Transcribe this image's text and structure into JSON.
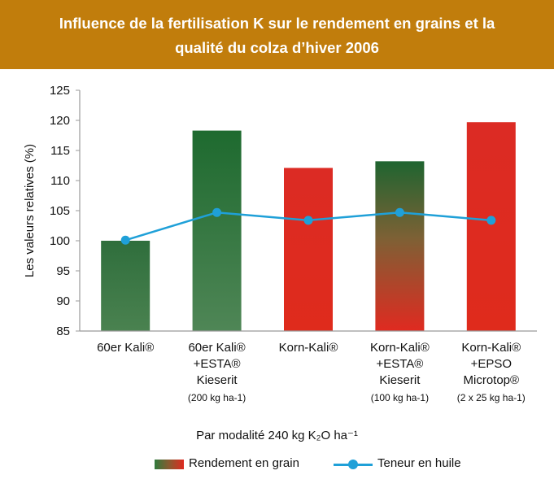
{
  "header": {
    "title_line1": "Influence de la fertilisation K sur le rendement en grains et la",
    "title_line2": "qualité du colza d’hiver 2006"
  },
  "chart_data": {
    "type": "bar",
    "ylabel": "Les valeurs relatives (%)",
    "xlabel": "Par modalité 240 kg K₂O ha⁻¹",
    "ylim": [
      85,
      125
    ],
    "yticks": [
      85,
      90,
      95,
      100,
      105,
      110,
      115,
      120,
      125
    ],
    "grid": false,
    "legend_position": "bottom",
    "categories": [
      {
        "lines": [
          "60er Kali®"
        ],
        "note": ""
      },
      {
        "lines": [
          "60er Kali®",
          "+ESTA®",
          "Kieserit"
        ],
        "note": "(200 kg ha-1)"
      },
      {
        "lines": [
          "Korn-Kali®"
        ],
        "note": ""
      },
      {
        "lines": [
          "Korn-Kali®",
          "+ESTA®",
          "Kieserit"
        ],
        "note": "(100 kg ha-1)"
      },
      {
        "lines": [
          "Korn-Kali®",
          "+EPSO",
          "Microtop®"
        ],
        "note": "(2 x 25 kg ha-1)"
      }
    ],
    "series": [
      {
        "name": "Rendement en grain",
        "kind": "bar",
        "values": [
          100,
          118.3,
          112.1,
          113.2,
          119.7
        ],
        "fills": [
          "green",
          "green-red",
          "red",
          "green-red",
          "red"
        ]
      },
      {
        "name": "Teneur en huile",
        "kind": "line",
        "values": [
          100.1,
          104.7,
          103.4,
          104.7,
          103.4
        ]
      }
    ],
    "colors": {
      "green": "#3d7a48",
      "red": "#de2a20",
      "line": "#1fa0d8",
      "axis": "#9a9a9a"
    }
  }
}
